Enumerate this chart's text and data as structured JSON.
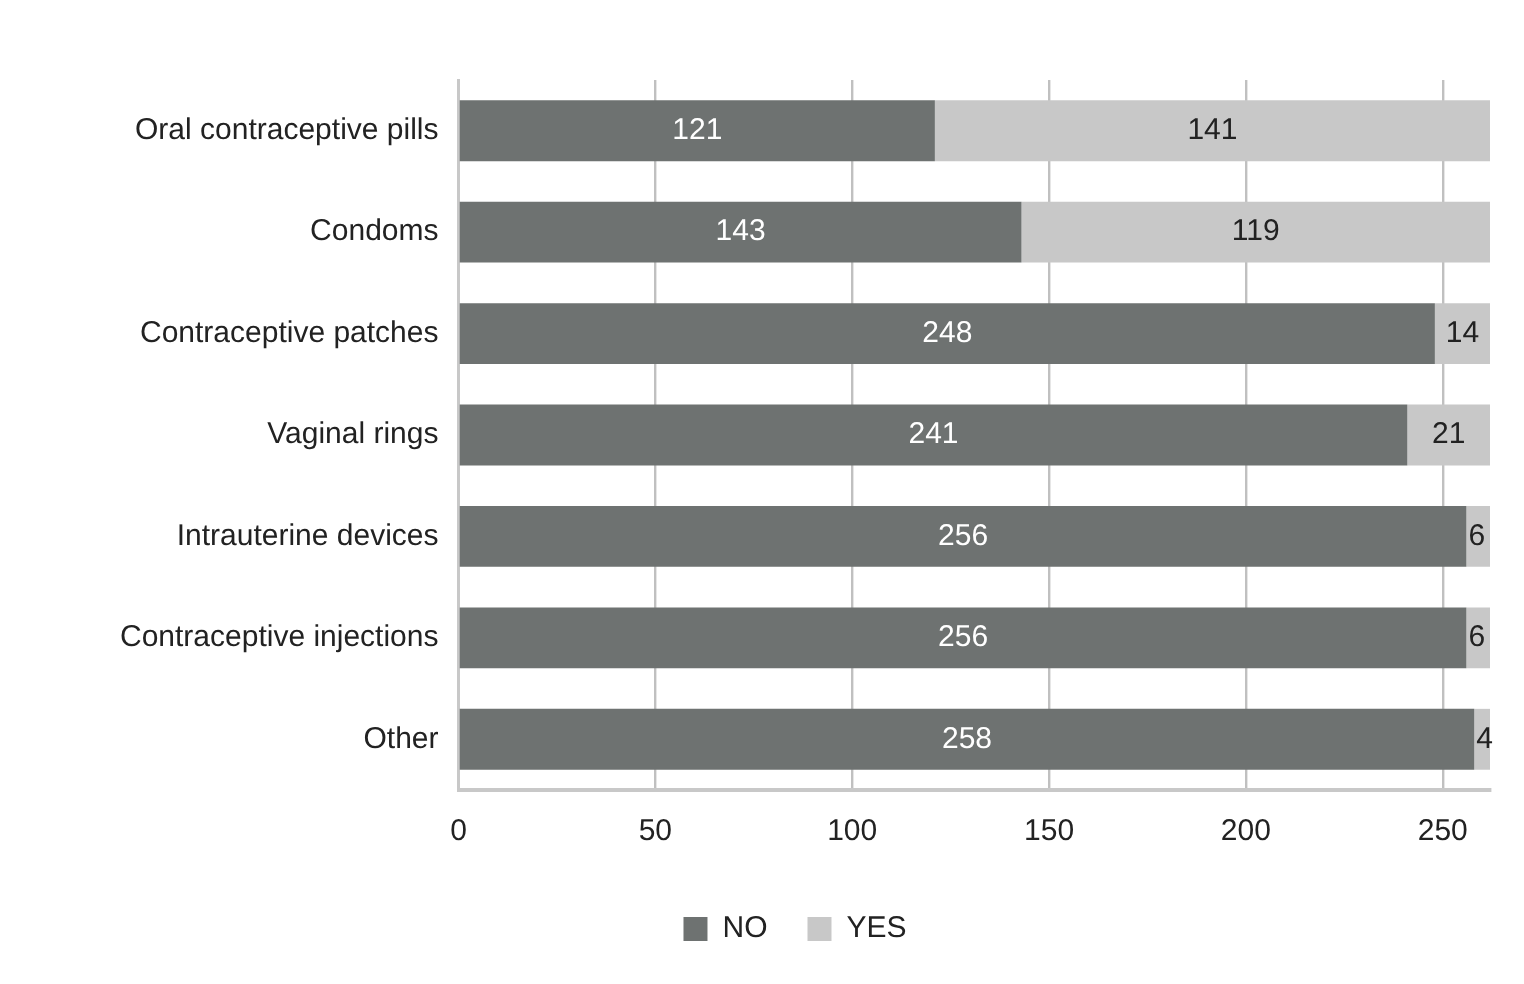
{
  "chart_data": {
    "type": "bar",
    "orientation": "horizontal",
    "stacked": true,
    "categories": [
      "Oral contraceptive pills",
      "Condoms",
      "Contraceptive patches",
      "Vaginal rings",
      "Intrauterine devices",
      "Contraceptive injections",
      "Other"
    ],
    "series": [
      {
        "name": "NO",
        "color": "#6e7271",
        "values": [
          121,
          143,
          248,
          241,
          256,
          256,
          258
        ]
      },
      {
        "name": "YES",
        "color": "#c8c8c8",
        "values": [
          141,
          119,
          14,
          21,
          6,
          6,
          4
        ]
      }
    ],
    "xlim": [
      0,
      262
    ],
    "xticks": [
      0,
      50,
      100,
      150,
      200,
      250
    ],
    "grid": "x",
    "legend": "bottom",
    "data_labels": true
  }
}
